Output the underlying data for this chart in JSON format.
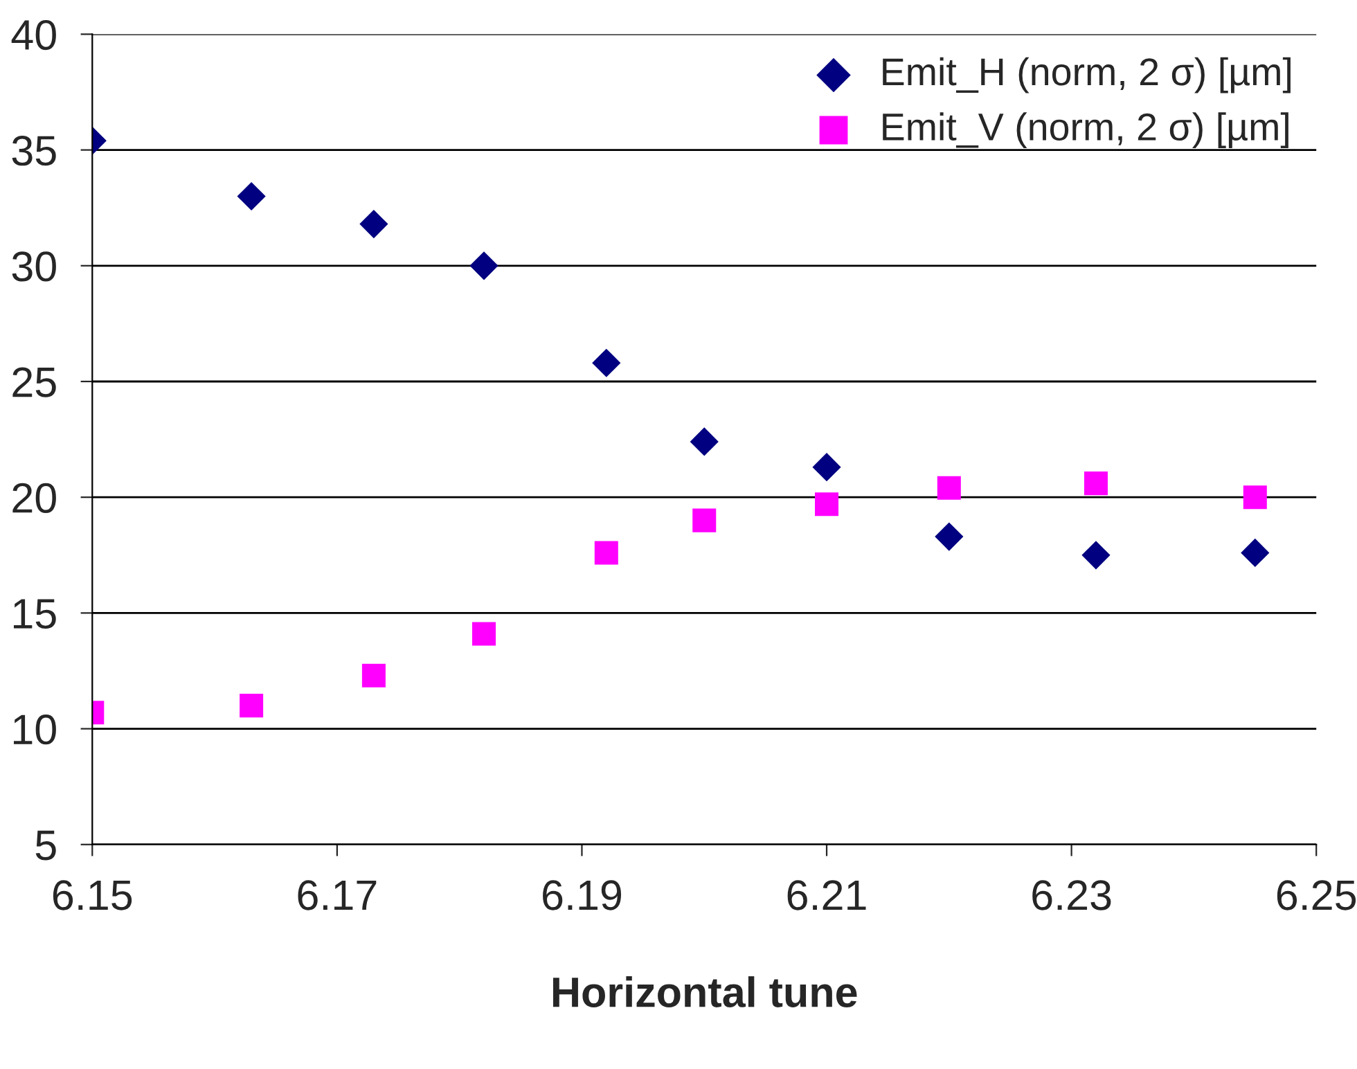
{
  "chart_data": {
    "type": "scatter",
    "xlabel": "Horizontal tune",
    "xlim": [
      6.15,
      6.25
    ],
    "xticks": [
      6.15,
      6.17,
      6.19,
      6.21,
      6.23,
      6.25
    ],
    "ylim": [
      5,
      40
    ],
    "yticks": [
      5,
      10,
      15,
      20,
      25,
      30,
      35,
      40
    ],
    "grid": "y",
    "legend": "top right",
    "series": [
      {
        "name": "Emit_H (norm, 2 σ) [µm]",
        "color": "#000080",
        "marker": "diamond",
        "x": [
          6.15,
          6.163,
          6.173,
          6.182,
          6.192,
          6.2,
          6.21,
          6.22,
          6.232,
          6.245
        ],
        "values": [
          35.4,
          33.0,
          31.8,
          30.0,
          25.8,
          22.4,
          21.3,
          18.3,
          17.5,
          17.6
        ]
      },
      {
        "name": "Emit_V (norm, 2 σ) [µm]",
        "color": "#ff00ff",
        "marker": "square",
        "x": [
          6.15,
          6.163,
          6.173,
          6.182,
          6.192,
          6.2,
          6.21,
          6.22,
          6.232,
          6.245
        ],
        "values": [
          10.7,
          11.0,
          12.3,
          14.1,
          17.6,
          19.0,
          19.7,
          20.4,
          20.6,
          20.0
        ]
      }
    ]
  }
}
